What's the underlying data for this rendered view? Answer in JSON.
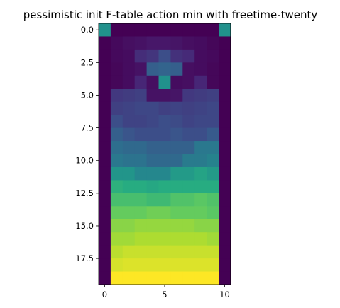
{
  "chart_data": {
    "type": "heatmap",
    "title": "pessimistic init F-table action min with freetime-twenty",
    "colormap": "viridis",
    "vmin": 0,
    "vmax": 1,
    "n_rows": 20,
    "n_cols": 11,
    "x_ticks": [
      0,
      5,
      10
    ],
    "x_tick_labels": [
      "0",
      "5",
      "10"
    ],
    "y_ticks": [
      0.0,
      2.5,
      5.0,
      7.5,
      10.0,
      12.5,
      15.0,
      17.5
    ],
    "y_tick_labels": [
      "0.0",
      "2.5",
      "5.0",
      "7.5",
      "10.0",
      "12.5",
      "15.0",
      "17.5"
    ],
    "xlabel": "",
    "ylabel": "",
    "grid": false,
    "values": [
      [
        0.5,
        0.0,
        0.0,
        0.0,
        0.0,
        0.0,
        0.0,
        0.0,
        0.0,
        0.0,
        0.5
      ],
      [
        0.0,
        0.03,
        0.05,
        0.06,
        0.08,
        0.08,
        0.07,
        0.05,
        0.04,
        0.02,
        0.0
      ],
      [
        0.0,
        0.03,
        0.04,
        0.15,
        0.17,
        0.24,
        0.16,
        0.14,
        0.04,
        0.03,
        0.0
      ],
      [
        0.0,
        0.02,
        0.04,
        0.06,
        0.3,
        0.32,
        0.3,
        0.05,
        0.04,
        0.02,
        0.0
      ],
      [
        0.0,
        0.02,
        0.04,
        0.13,
        0.05,
        0.5,
        0.04,
        0.05,
        0.13,
        0.02,
        0.0
      ],
      [
        0.0,
        0.18,
        0.19,
        0.2,
        0.06,
        0.06,
        0.07,
        0.18,
        0.19,
        0.2,
        0.0
      ],
      [
        0.0,
        0.2,
        0.21,
        0.22,
        0.22,
        0.2,
        0.21,
        0.2,
        0.21,
        0.22,
        0.0
      ],
      [
        0.0,
        0.24,
        0.21,
        0.21,
        0.22,
        0.24,
        0.23,
        0.21,
        0.22,
        0.22,
        0.0
      ],
      [
        0.0,
        0.3,
        0.26,
        0.24,
        0.24,
        0.24,
        0.26,
        0.24,
        0.24,
        0.28,
        0.0
      ],
      [
        0.0,
        0.36,
        0.34,
        0.34,
        0.31,
        0.31,
        0.31,
        0.31,
        0.4,
        0.4,
        0.0
      ],
      [
        0.0,
        0.4,
        0.38,
        0.38,
        0.34,
        0.34,
        0.34,
        0.41,
        0.41,
        0.44,
        0.0
      ],
      [
        0.0,
        0.52,
        0.52,
        0.46,
        0.46,
        0.46,
        0.54,
        0.54,
        0.58,
        0.54,
        0.0
      ],
      [
        0.0,
        0.64,
        0.62,
        0.62,
        0.6,
        0.62,
        0.62,
        0.62,
        0.62,
        0.62,
        0.0
      ],
      [
        0.0,
        0.7,
        0.7,
        0.7,
        0.68,
        0.68,
        0.72,
        0.72,
        0.74,
        0.72,
        0.0
      ],
      [
        0.0,
        0.76,
        0.76,
        0.76,
        0.78,
        0.78,
        0.76,
        0.76,
        0.76,
        0.74,
        0.0
      ],
      [
        0.0,
        0.82,
        0.82,
        0.84,
        0.84,
        0.84,
        0.84,
        0.84,
        0.82,
        0.82,
        0.0
      ],
      [
        0.0,
        0.86,
        0.86,
        0.88,
        0.88,
        0.88,
        0.88,
        0.88,
        0.88,
        0.86,
        0.0
      ],
      [
        0.0,
        0.9,
        0.92,
        0.92,
        0.92,
        0.92,
        0.92,
        0.92,
        0.92,
        0.92,
        0.0
      ],
      [
        0.0,
        0.94,
        0.95,
        0.95,
        0.95,
        0.95,
        0.95,
        0.95,
        0.95,
        0.95,
        0.0
      ],
      [
        0.0,
        1.0,
        1.0,
        1.0,
        1.0,
        1.0,
        1.0,
        1.0,
        1.0,
        1.0,
        0.0
      ]
    ]
  }
}
